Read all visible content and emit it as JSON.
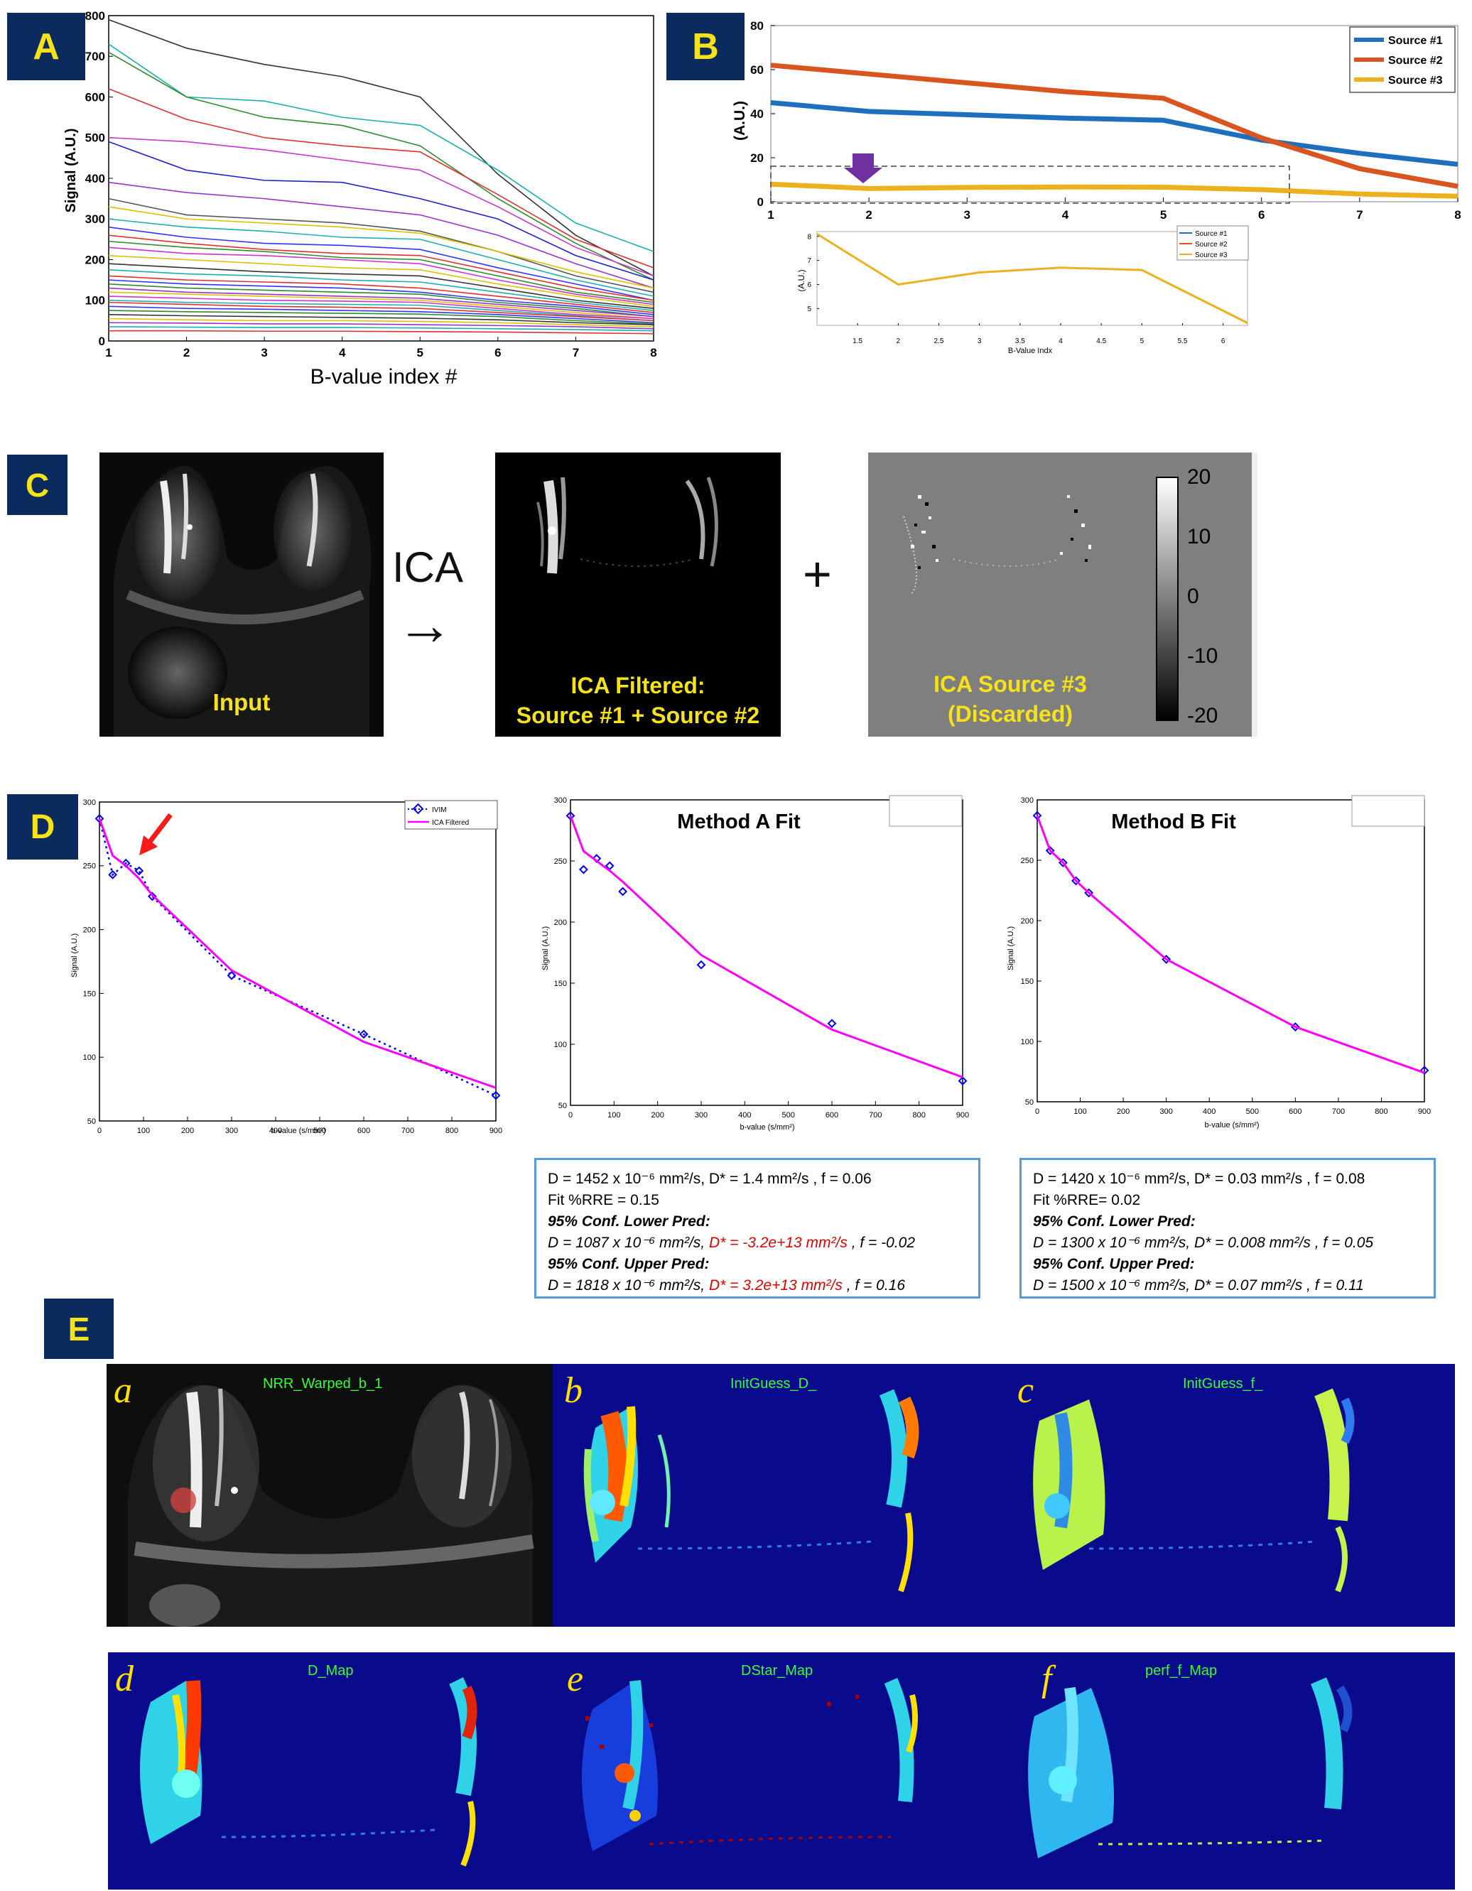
{
  "panel_labels": {
    "A": "A",
    "B": "B",
    "C": "C",
    "D": "D",
    "E": "E"
  },
  "colors": {
    "label_bg": "#0b2a5e",
    "label_fg": "#f5e21a",
    "source1": "#1f6fbf",
    "source2": "#d9541e",
    "source3": "#edb120",
    "ivim": "#0000ff",
    "ica": "#ff00ff",
    "box": "#5b9bd5"
  },
  "panelA": {
    "xlabel": "B-value index #",
    "ylabel": "Signal (A.U.)"
  },
  "panelB": {
    "ylabel": "(A.U.)",
    "legend": [
      "Source #1",
      "Source #2",
      "Source #3"
    ],
    "inset": {
      "xlabel": "B-Value Indx",
      "ylabel": "(A.U.)",
      "legend": [
        "Source #1",
        "Source #2",
        "Source #3"
      ]
    }
  },
  "panelC": {
    "input_label": "Input",
    "ica_text": "ICA",
    "arrow": "→",
    "plus": "+",
    "filtered_label_1": "ICA Filtered:",
    "filtered_label_2": "Source #1 + Source #2",
    "discarded_label_1": "ICA Source #3",
    "discarded_label_2": "(Discarded)",
    "colorbar_ticks": [
      "20",
      "10",
      "0",
      "-10",
      "-20"
    ]
  },
  "panelD": {
    "plot1": {
      "xlabel": "b-value (s/mm²)",
      "ylabel": "Signal (A.U.)",
      "legend": [
        "IVIM",
        "ICA Filtered"
      ]
    },
    "plot2": {
      "title": "Method A Fit",
      "xlabel": "b-value (s/mm²)",
      "ylabel": "Signal (A.U.)"
    },
    "plot3": {
      "title": "Method B Fit",
      "xlabel": "b-value (s/mm²)",
      "ylabel": "Signal (A.U.)"
    },
    "boxA": {
      "l1": "D = 1452 x 10⁻⁶ mm²/s, D* = 1.4 mm²/s , f = 0.06",
      "l2": "Fit %RRE = 0.15",
      "l3": "95% Conf. Lower Pred:",
      "l4a": "D = 1087 x 10⁻⁶ mm²/s, ",
      "l4b": "D* = -3.2e+13 mm²/s",
      "l4c": " , f = -0.02",
      "l5": "95% Conf. Upper Pred:",
      "l6a": "D = 1818 x 10⁻⁶ mm²/s, ",
      "l6b": "D* = 3.2e+13 mm²/s",
      "l6c": " , f = 0.16"
    },
    "boxB": {
      "l1": "D = 1420 x 10⁻⁶ mm²/s, D* = 0.03 mm²/s , f = 0.08",
      "l2": "Fit %RRE= 0.02",
      "l3": "95% Conf.  Lower Pred:",
      "l4": "D = 1300 x 10⁻⁶ mm²/s, D* = 0.008 mm²/s , f = 0.05",
      "l5": "95% Conf. Upper Pred:",
      "l6": "D = 1500 x 10⁻⁶ mm²/s, D* = 0.07 mm²/s , f = 0.11"
    }
  },
  "panelE": {
    "sub": [
      "a",
      "b",
      "c",
      "d",
      "e",
      "f"
    ],
    "maps": [
      "NRR_Warped_b_1",
      "InitGuess_D_",
      "InitGuess_f_",
      "D_Map",
      "DStar_Map",
      "perf_f_Map"
    ]
  },
  "chart_data": [
    {
      "type": "line",
      "id": "A",
      "x": [
        1,
        2,
        3,
        4,
        5,
        6,
        7,
        8
      ],
      "xlim": [
        1,
        8
      ],
      "ylim": [
        0,
        800
      ],
      "xticks": [
        1,
        2,
        3,
        4,
        5,
        6,
        7,
        8
      ],
      "yticks": [
        0,
        100,
        200,
        300,
        400,
        500,
        600,
        700,
        800
      ],
      "xlabel": "B-value index #",
      "ylabel": "Signal (A.U.)",
      "series": [
        {
          "color": "#333333",
          "values": [
            790,
            720,
            680,
            650,
            600,
            410,
            260,
            160
          ]
        },
        {
          "color": "#1ab0b0",
          "values": [
            730,
            600,
            590,
            550,
            530,
            420,
            290,
            220
          ]
        },
        {
          "color": "#2e8b2e",
          "values": [
            710,
            600,
            550,
            530,
            480,
            350,
            240,
            150
          ]
        },
        {
          "color": "#e03030",
          "values": [
            620,
            545,
            500,
            480,
            465,
            360,
            250,
            180
          ]
        },
        {
          "color": "#cc33cc",
          "values": [
            500,
            490,
            470,
            445,
            420,
            330,
            230,
            160
          ]
        },
        {
          "color": "#2020cc",
          "values": [
            490,
            420,
            395,
            390,
            350,
            300,
            210,
            150
          ]
        },
        {
          "color": "#9933cc",
          "values": [
            390,
            365,
            350,
            330,
            310,
            260,
            190,
            130
          ]
        },
        {
          "color": "#555555",
          "values": [
            350,
            310,
            300,
            290,
            270,
            220,
            160,
            120
          ]
        },
        {
          "color": "#ddc000",
          "values": [
            330,
            300,
            290,
            280,
            265,
            220,
            170,
            130
          ]
        },
        {
          "color": "#1ab0b0",
          "values": [
            300,
            280,
            270,
            255,
            250,
            200,
            150,
            110
          ]
        },
        {
          "color": "#3333ff",
          "values": [
            280,
            255,
            240,
            235,
            225,
            180,
            140,
            100
          ]
        },
        {
          "color": "#e03030",
          "values": [
            260,
            240,
            225,
            215,
            210,
            170,
            130,
            100
          ]
        },
        {
          "color": "#2e8b2e",
          "values": [
            245,
            230,
            220,
            205,
            200,
            160,
            120,
            95
          ]
        },
        {
          "color": "#cc33cc",
          "values": [
            230,
            215,
            210,
            200,
            190,
            150,
            115,
            90
          ]
        },
        {
          "color": "#ddc000",
          "values": [
            210,
            200,
            190,
            180,
            175,
            140,
            110,
            85
          ]
        },
        {
          "color": "#333333",
          "values": [
            190,
            180,
            170,
            165,
            160,
            130,
            100,
            80
          ]
        },
        {
          "color": "#1ab0b0",
          "values": [
            175,
            165,
            160,
            150,
            145,
            120,
            95,
            75
          ]
        },
        {
          "color": "#e03030",
          "values": [
            160,
            150,
            145,
            140,
            130,
            110,
            90,
            70
          ]
        },
        {
          "color": "#3333ff",
          "values": [
            150,
            140,
            135,
            130,
            120,
            100,
            85,
            65
          ]
        },
        {
          "color": "#2e8b2e",
          "values": [
            140,
            130,
            125,
            120,
            115,
            95,
            80,
            60
          ]
        },
        {
          "color": "#9933cc",
          "values": [
            130,
            120,
            115,
            110,
            105,
            90,
            75,
            60
          ]
        },
        {
          "color": "#ddc000",
          "values": [
            120,
            115,
            110,
            105,
            100,
            85,
            70,
            55
          ]
        },
        {
          "color": "#cc33cc",
          "values": [
            110,
            105,
            100,
            98,
            95,
            80,
            65,
            55
          ]
        },
        {
          "color": "#1ab0b0",
          "values": [
            100,
            95,
            92,
            90,
            88,
            75,
            62,
            50
          ]
        },
        {
          "color": "#e03030",
          "values": [
            95,
            90,
            85,
            83,
            80,
            70,
            60,
            50
          ]
        },
        {
          "color": "#3333ff",
          "values": [
            85,
            80,
            78,
            75,
            72,
            65,
            55,
            45
          ]
        },
        {
          "color": "#2e8b2e",
          "values": [
            75,
            72,
            70,
            68,
            66,
            60,
            50,
            42
          ]
        },
        {
          "color": "#333333",
          "values": [
            65,
            62,
            60,
            58,
            56,
            52,
            45,
            40
          ]
        },
        {
          "color": "#ddc000",
          "values": [
            55,
            52,
            50,
            50,
            48,
            45,
            40,
            35
          ]
        },
        {
          "color": "#9933cc",
          "values": [
            45,
            44,
            42,
            42,
            40,
            38,
            35,
            30
          ]
        },
        {
          "color": "#1ab0b0",
          "values": [
            35,
            34,
            33,
            33,
            32,
            30,
            28,
            25
          ]
        },
        {
          "color": "#e03030",
          "values": [
            25,
            25,
            24,
            24,
            23,
            22,
            20,
            18
          ]
        }
      ]
    },
    {
      "type": "line",
      "id": "B",
      "x": [
        1,
        2,
        3,
        4,
        5,
        6,
        7,
        8
      ],
      "xlim": [
        1,
        8
      ],
      "ylim": [
        0,
        80
      ],
      "xticks": [
        1,
        2,
        3,
        4,
        5,
        6,
        7,
        8
      ],
      "yticks": [
        0,
        20,
        40,
        60,
        80
      ],
      "ylabel": "(A.U.)",
      "series": [
        {
          "name": "Source #1",
          "color": "#1f6fbf",
          "values": [
            45,
            41,
            39.5,
            38,
            37,
            28,
            22,
            17
          ]
        },
        {
          "name": "Source #2",
          "color": "#d9541e",
          "values": [
            62,
            58,
            54,
            50,
            47,
            29,
            15,
            7
          ]
        },
        {
          "name": "Source #3",
          "color": "#edb120",
          "values": [
            8,
            6,
            6.5,
            6.7,
            6.6,
            5.5,
            3.5,
            2.5
          ]
        }
      ]
    },
    {
      "type": "line",
      "id": "B-inset",
      "x": [
        1,
        2,
        3,
        4,
        5,
        6.3
      ],
      "xlim": [
        1,
        6.3
      ],
      "ylim": [
        4.3,
        8.2
      ],
      "xticks": [
        1.5,
        2,
        2.5,
        3,
        3.5,
        4,
        4.5,
        5,
        5.5,
        6
      ],
      "yticks": [
        5,
        6,
        7,
        8
      ],
      "xlabel": "B-Value Indx",
      "ylabel": "(A.U.)",
      "series": [
        {
          "name": "Source #3",
          "color": "#edb120",
          "values": [
            8.1,
            6.0,
            6.5,
            6.7,
            6.6,
            4.4
          ]
        }
      ]
    },
    {
      "type": "line",
      "id": "D1",
      "xlim": [
        0,
        900
      ],
      "ylim": [
        50,
        300
      ],
      "xticks": [
        0,
        100,
        200,
        300,
        400,
        500,
        600,
        700,
        800,
        900
      ],
      "yticks": [
        50,
        100,
        150,
        200,
        250,
        300
      ],
      "xlabel": "b-value (s/mm²)",
      "ylabel": "Signal (A.U.)",
      "series": [
        {
          "name": "IVIM",
          "color": "#0000ff",
          "style": "dotted-markers",
          "x": [
            0,
            30,
            60,
            90,
            120,
            300,
            600,
            900
          ],
          "values": [
            287,
            243,
            252,
            246,
            226,
            164,
            118,
            70
          ]
        },
        {
          "name": "ICA Filtered",
          "color": "#ff00ff",
          "style": "solid",
          "x": [
            0,
            30,
            60,
            90,
            120,
            300,
            600,
            900
          ],
          "values": [
            287,
            258,
            250,
            240,
            227,
            168,
            112,
            76
          ]
        }
      ]
    },
    {
      "type": "line",
      "id": "D2",
      "title": "Method A Fit",
      "xlim": [
        0,
        900
      ],
      "ylim": [
        50,
        300
      ],
      "xticks": [
        0,
        100,
        200,
        300,
        400,
        500,
        600,
        700,
        800,
        900
      ],
      "yticks": [
        50,
        100,
        150,
        200,
        250,
        300
      ],
      "xlabel": "b-value (s/mm²)",
      "ylabel": "Signal (A.U.)",
      "series": [
        {
          "color": "#0000ff",
          "style": "markers",
          "x": [
            0,
            30,
            60,
            90,
            120,
            300,
            600,
            900
          ],
          "values": [
            287,
            243,
            252,
            246,
            225,
            165,
            117,
            70
          ]
        },
        {
          "color": "#ff00ff",
          "style": "solid",
          "x": [
            0,
            30,
            60,
            90,
            120,
            300,
            600,
            900
          ],
          "values": [
            287,
            258,
            250,
            242,
            233,
            173,
            112,
            73
          ]
        }
      ]
    },
    {
      "type": "line",
      "id": "D3",
      "title": "Method B Fit",
      "xlim": [
        0,
        900
      ],
      "ylim": [
        50,
        300
      ],
      "xticks": [
        0,
        100,
        200,
        300,
        400,
        500,
        600,
        700,
        800,
        900
      ],
      "yticks": [
        50,
        100,
        150,
        200,
        250,
        300
      ],
      "xlabel": "b-value (s/mm²)",
      "ylabel": "Signal (A.U.)",
      "series": [
        {
          "color": "#0000ff",
          "style": "markers",
          "x": [
            0,
            30,
            60,
            90,
            120,
            300,
            600,
            900
          ],
          "values": [
            287,
            258,
            248,
            233,
            223,
            168,
            112,
            76
          ]
        },
        {
          "color": "#ff00ff",
          "style": "solid",
          "x": [
            0,
            30,
            60,
            90,
            120,
            300,
            600,
            900
          ],
          "values": [
            287,
            258,
            248,
            233,
            223,
            168,
            112,
            74
          ]
        }
      ]
    }
  ]
}
